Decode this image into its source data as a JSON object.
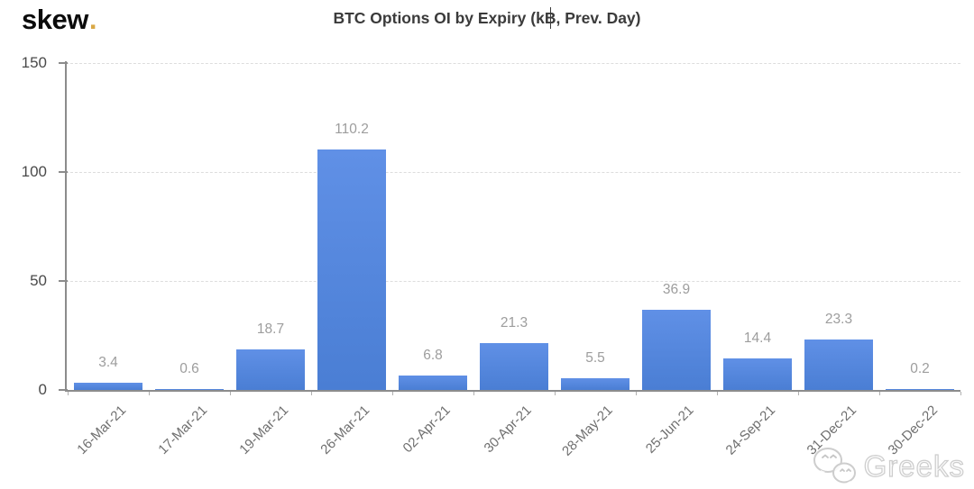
{
  "header": {
    "logo_text": "skew",
    "logo_dot": ".",
    "title_pre": "BTC Options OI by Expiry (k",
    "title_symbol": "B",
    "title_post": ", Prev. Day)"
  },
  "chart_data": {
    "type": "bar",
    "title": "BTC Options OI by Expiry (k₿, Prev. Day)",
    "categories": [
      "16-Mar-21",
      "17-Mar-21",
      "19-Mar-21",
      "26-Mar-21",
      "02-Apr-21",
      "30-Apr-21",
      "28-May-21",
      "25-Jun-21",
      "24-Sep-21",
      "31-Dec-21",
      "30-Dec-22"
    ],
    "values": [
      3.4,
      0.6,
      18.7,
      110.2,
      6.8,
      21.3,
      5.5,
      36.9,
      14.4,
      23.3,
      0.2
    ],
    "value_labels": [
      "3.4",
      "0.6",
      "18.7",
      "110.2",
      "6.8",
      "21.3",
      "5.5",
      "36.9",
      "14.4",
      "23.3",
      "0.2"
    ],
    "xlabel": "",
    "ylabel": "",
    "ylim": [
      0,
      150
    ],
    "yticks": [
      0,
      50,
      100,
      150
    ],
    "ytick_labels": [
      "0",
      "50",
      "100",
      "150"
    ],
    "grid": "horizontal dashed at yticks",
    "legend": "none",
    "bar_color": "#5589e0",
    "value_label_color": "#9d9d9d",
    "axis_color": "#8c8c8c",
    "grid_color": "#dddddd"
  },
  "watermark": {
    "text": "Greeks",
    "icon": "wechat-icon"
  },
  "colors": {
    "background": "#ffffff",
    "logo": "#0b0b0b",
    "logo_dot_gold": "#d9a845",
    "title": "#3b3b3b",
    "x_label": "#6f6f6f",
    "y_label": "#4a4a4a"
  }
}
